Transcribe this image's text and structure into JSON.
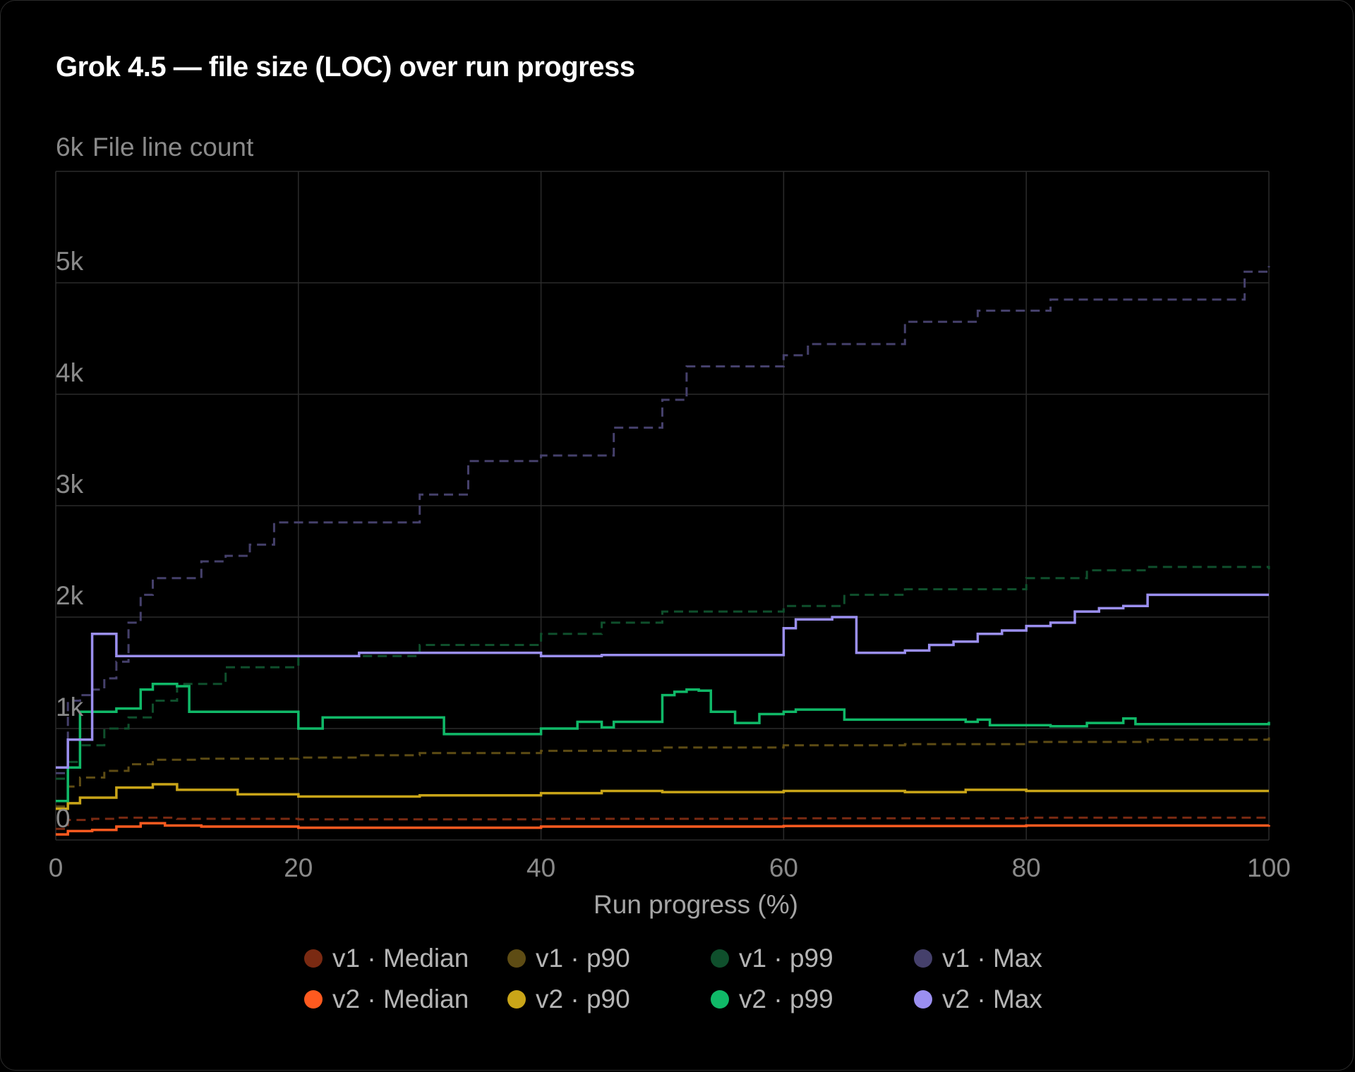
{
  "chart_data": {
    "type": "line",
    "title": "Grok 4.5 — file size (LOC) over run progress",
    "ylabel": "File line count",
    "xlabel": "Run progress (%)",
    "xlim": [
      0,
      100
    ],
    "ylim": [
      0,
      6000
    ],
    "x_ticks": [
      "0",
      "20",
      "40",
      "60",
      "80",
      "100"
    ],
    "y_ticks": [
      "0",
      "1k",
      "2k",
      "3k",
      "4k",
      "5k",
      "6k"
    ],
    "step": true,
    "grid": true,
    "legend_position": "bottom",
    "series": [
      {
        "name": "v1 · Median",
        "color": "#7a2a12",
        "dashed": true,
        "x": [
          0,
          1,
          3,
          5,
          10,
          20,
          40,
          60,
          80,
          100
        ],
        "y": [
          100,
          180,
          190,
          200,
          190,
          185,
          190,
          195,
          200,
          205
        ]
      },
      {
        "name": "v2 · Median",
        "color": "#ff5a1f",
        "dashed": false,
        "x": [
          0,
          1,
          3,
          5,
          7,
          9,
          12,
          20,
          40,
          60,
          80,
          100
        ],
        "y": [
          50,
          80,
          90,
          120,
          150,
          130,
          120,
          110,
          120,
          125,
          130,
          135
        ]
      },
      {
        "name": "v1 · p90",
        "color": "#5e4c14",
        "dashed": true,
        "x": [
          0,
          1,
          2,
          4,
          6,
          8,
          12,
          20,
          25,
          30,
          40,
          50,
          60,
          70,
          80,
          90,
          100
        ],
        "y": [
          300,
          480,
          560,
          620,
          680,
          720,
          730,
          740,
          760,
          780,
          800,
          830,
          850,
          860,
          880,
          900,
          920
        ]
      },
      {
        "name": "v2 · p90",
        "color": "#c9a518",
        "dashed": false,
        "x": [
          0,
          1,
          2,
          5,
          8,
          10,
          15,
          20,
          30,
          40,
          45,
          50,
          60,
          70,
          75,
          80,
          90,
          100
        ],
        "y": [
          280,
          330,
          380,
          470,
          500,
          450,
          410,
          390,
          400,
          420,
          440,
          430,
          440,
          430,
          450,
          440,
          440,
          440
        ]
      },
      {
        "name": "v1 · p99",
        "color": "#0f4f2c",
        "dashed": true,
        "x": [
          0,
          1,
          2,
          4,
          6,
          8,
          10,
          14,
          20,
          30,
          40,
          45,
          50,
          60,
          65,
          70,
          80,
          85,
          90,
          100
        ],
        "y": [
          550,
          700,
          850,
          1000,
          1100,
          1250,
          1400,
          1550,
          1650,
          1750,
          1850,
          1950,
          2050,
          2100,
          2200,
          2250,
          2350,
          2420,
          2450,
          2430
        ]
      },
      {
        "name": "v2 · p99",
        "color": "#10b968",
        "dashed": false,
        "x": [
          0,
          1,
          2,
          5,
          7,
          8,
          10,
          11,
          20,
          21,
          22,
          32,
          33,
          40,
          43,
          45,
          46,
          50,
          51,
          52,
          53,
          54,
          56,
          58,
          60,
          61,
          65,
          75,
          76,
          77,
          78,
          82,
          85,
          88,
          89,
          100
        ],
        "y": [
          350,
          650,
          1150,
          1180,
          1350,
          1400,
          1380,
          1150,
          1000,
          1000,
          1100,
          950,
          950,
          1000,
          1060,
          1010,
          1060,
          1300,
          1330,
          1350,
          1340,
          1150,
          1050,
          1130,
          1150,
          1170,
          1080,
          1060,
          1080,
          1030,
          1030,
          1020,
          1050,
          1090,
          1040,
          1060
        ]
      },
      {
        "name": "v1 · Max",
        "color": "#45406b",
        "dashed": true,
        "x": [
          0,
          1,
          2,
          3,
          4,
          5,
          6,
          7,
          8,
          10,
          12,
          14,
          16,
          18,
          20,
          22,
          24,
          26,
          28,
          30,
          32,
          34,
          36,
          38,
          40,
          42,
          44,
          46,
          48,
          50,
          52,
          54,
          56,
          58,
          60,
          62,
          64,
          66,
          68,
          70,
          72,
          74,
          76,
          78,
          80,
          82,
          84,
          86,
          88,
          90,
          92,
          94,
          96,
          98,
          100
        ],
        "y": [
          600,
          1250,
          1300,
          1350,
          1450,
          1600,
          1950,
          2200,
          2350,
          2350,
          2500,
          2550,
          2650,
          2850,
          2850,
          2850,
          2850,
          2850,
          2850,
          3100,
          3100,
          3400,
          3400,
          3400,
          3450,
          3450,
          3450,
          3700,
          3700,
          3950,
          4250,
          4250,
          4250,
          4250,
          4350,
          4450,
          4450,
          4450,
          4450,
          4650,
          4650,
          4650,
          4750,
          4750,
          4750,
          4850,
          4850,
          4850,
          4850,
          4850,
          4850,
          4850,
          4850,
          5100,
          5150
        ]
      },
      {
        "name": "v2 · Max",
        "color": "#9b8ff0",
        "dashed": false,
        "x": [
          0,
          1,
          2,
          3,
          4,
          5,
          10,
          20,
          25,
          30,
          40,
          45,
          50,
          59,
          60,
          61,
          62,
          64,
          65,
          66,
          70,
          72,
          74,
          76,
          78,
          80,
          82,
          84,
          86,
          88,
          90,
          100
        ],
        "y": [
          650,
          900,
          900,
          1850,
          1850,
          1650,
          1650,
          1650,
          1680,
          1680,
          1650,
          1660,
          1660,
          1660,
          1900,
          1980,
          1980,
          2000,
          2000,
          1680,
          1700,
          1750,
          1780,
          1850,
          1880,
          1920,
          1950,
          2050,
          2080,
          2100,
          2200,
          2200
        ]
      }
    ]
  }
}
